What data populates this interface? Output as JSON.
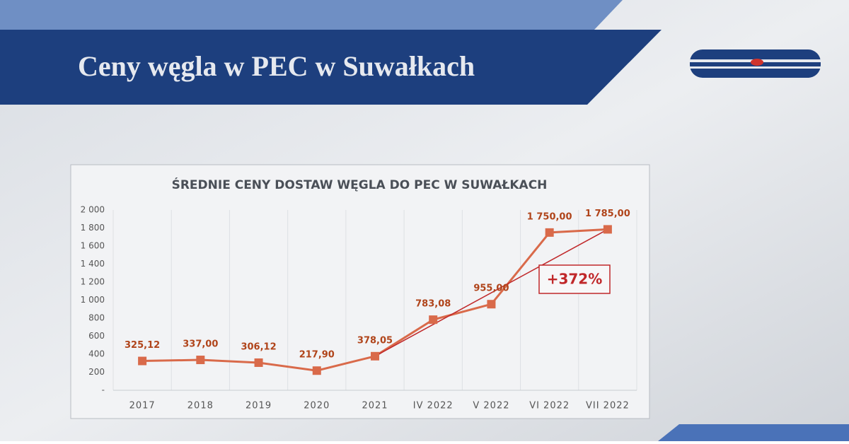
{
  "slide_title": "Ceny węgla w PEC w Suwałkach",
  "chart_data": {
    "type": "line",
    "title": "ŚREDNIE CENY DOSTAW WĘGLA DO PEC W SUWAŁKACH",
    "categories": [
      "2017",
      "2018",
      "2019",
      "2020",
      "2021",
      "IV 2022",
      "V 2022",
      "VI 2022",
      "VII 2022"
    ],
    "values": [
      325.12,
      337.0,
      306.12,
      217.9,
      378.05,
      783.08,
      955.0,
      1750.0,
      1785.0
    ],
    "value_labels": [
      "325,12",
      "337,00",
      "306,12",
      "217,90",
      "378,05",
      "783,08",
      "955,00",
      "1 750,00",
      "1 785,00"
    ],
    "color": "#d96a4a",
    "ylim": [
      0,
      2000
    ],
    "yticks": [
      {
        "value": 0,
        "label": "-"
      },
      200,
      400,
      600,
      800,
      {
        "value": 1000,
        "label": "1 000"
      },
      {
        "value": 1200,
        "label": "1 200"
      },
      {
        "value": 1400,
        "label": "1 400"
      },
      {
        "value": 1600,
        "label": "1 600"
      },
      {
        "value": 1800,
        "label": "1 800"
      },
      {
        "value": 2000,
        "label": "2 000"
      }
    ],
    "annotation": "+372%"
  }
}
